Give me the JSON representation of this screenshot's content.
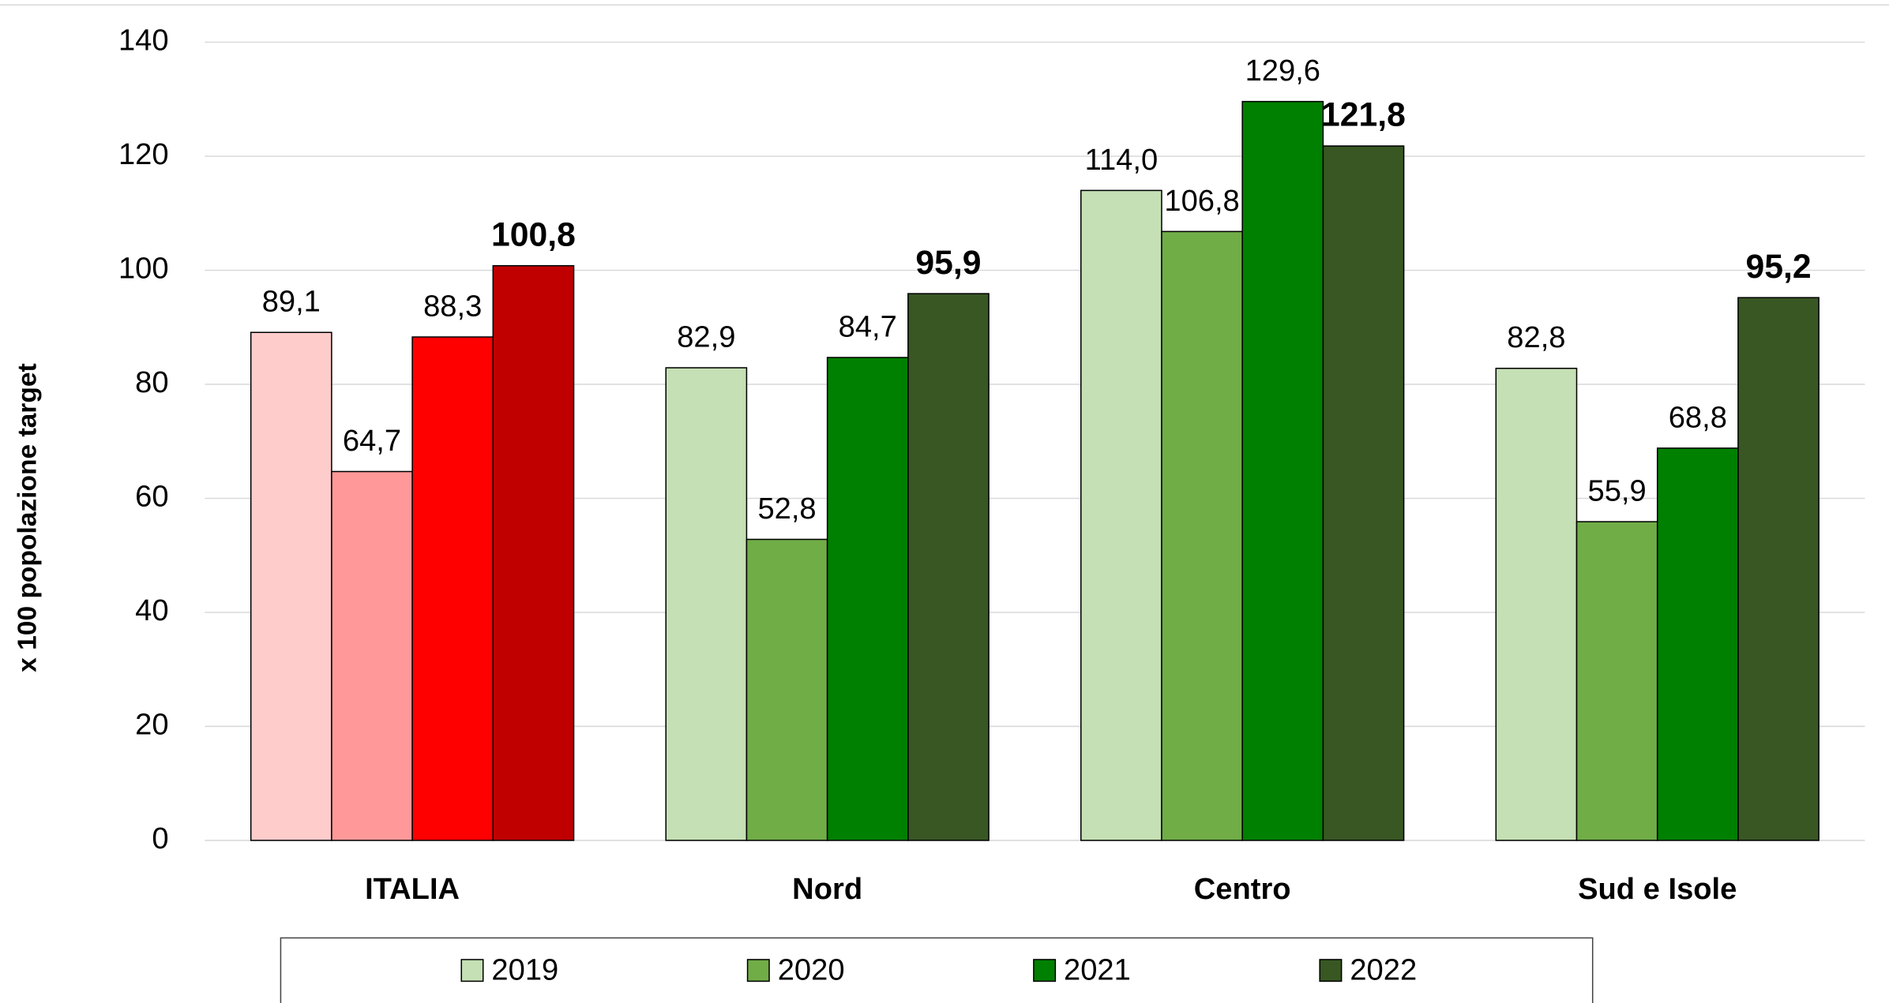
{
  "chart_data": {
    "type": "bar",
    "y_label": "x 100 popolazione target",
    "categories": [
      "ITALIA",
      "Nord",
      "Centro",
      "Sud e Isole"
    ],
    "series": [
      {
        "name": "2019",
        "color": "#c5e0b4",
        "colors": [
          "#ffcccc",
          "#c5e0b4",
          "#c5e0b4",
          "#c5e0b4"
        ],
        "values": [
          89.1,
          82.9,
          114.0,
          82.8
        ],
        "value_labels": [
          "89,1",
          "82,9",
          "114,0",
          "82,8"
        ],
        "bold_labels": false
      },
      {
        "name": "2020",
        "color": "#70ad47",
        "colors": [
          "#ff9999",
          "#70ad47",
          "#70ad47",
          "#70ad47"
        ],
        "values": [
          64.7,
          52.8,
          106.8,
          55.9
        ],
        "value_labels": [
          "64,7",
          "52,8",
          "106,8",
          "55,9"
        ],
        "bold_labels": false
      },
      {
        "name": "2021",
        "color": "#008000",
        "colors": [
          "#ff0000",
          "#008000",
          "#008000",
          "#008000"
        ],
        "values": [
          88.3,
          84.7,
          129.6,
          68.8
        ],
        "value_labels": [
          "88,3",
          "84,7",
          "129,6",
          "68,8"
        ],
        "bold_labels": false
      },
      {
        "name": "2022",
        "color": "#385723",
        "colors": [
          "#c00000",
          "#385723",
          "#385723",
          "#385723"
        ],
        "values": [
          100.8,
          95.9,
          121.8,
          95.2
        ],
        "value_labels": [
          "100,8",
          "95,9",
          "121,8",
          "95,2"
        ],
        "bold_labels": true
      }
    ],
    "ylim": [
      0,
      140
    ],
    "yticks": [
      0,
      20,
      40,
      60,
      80,
      100,
      120,
      140
    ],
    "grid": true
  }
}
